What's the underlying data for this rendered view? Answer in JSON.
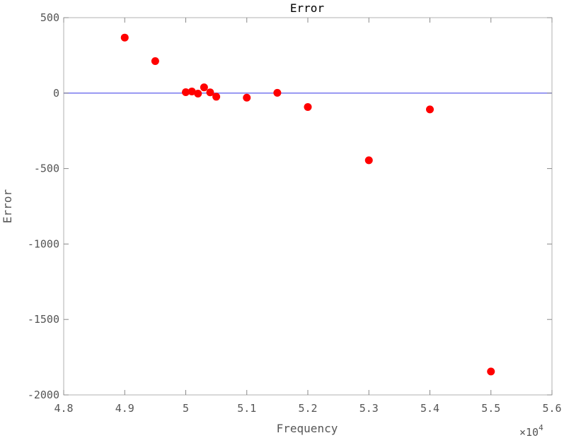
{
  "chart_data": {
    "type": "scatter",
    "title": "Error",
    "xlabel": "Frequency",
    "ylabel": "Error",
    "x_exponent_label": "×10",
    "x_exponent_power": "4",
    "xlim": [
      4.8,
      5.6
    ],
    "ylim": [
      -2000,
      500
    ],
    "x_ticks": [
      4.8,
      4.9,
      5.0,
      5.1,
      5.2,
      5.3,
      5.4,
      5.5,
      5.6
    ],
    "x_tick_labels": [
      "4.8",
      "4.9",
      "5",
      "5.1",
      "5.2",
      "5.3",
      "5.4",
      "5.5",
      "5.6"
    ],
    "y_ticks": [
      500,
      0,
      -500,
      -1000,
      -1500,
      -2000
    ],
    "y_tick_labels": [
      "500",
      "0",
      "-500",
      "-1000",
      "-1500",
      "-2000"
    ],
    "grid": false,
    "reference_line": {
      "y": 0,
      "color": "#7777ee"
    },
    "marker_color": "#ff0000",
    "points": [
      {
        "x": 4.9,
        "y": 368
      },
      {
        "x": 4.95,
        "y": 212
      },
      {
        "x": 5.0,
        "y": 6
      },
      {
        "x": 5.01,
        "y": 11
      },
      {
        "x": 5.02,
        "y": -3
      },
      {
        "x": 5.03,
        "y": 38
      },
      {
        "x": 5.04,
        "y": 5
      },
      {
        "x": 5.05,
        "y": -24
      },
      {
        "x": 5.1,
        "y": -30
      },
      {
        "x": 5.15,
        "y": 2
      },
      {
        "x": 5.2,
        "y": -92
      },
      {
        "x": 5.3,
        "y": -445
      },
      {
        "x": 5.4,
        "y": -108
      },
      {
        "x": 5.5,
        "y": -1845
      }
    ]
  }
}
